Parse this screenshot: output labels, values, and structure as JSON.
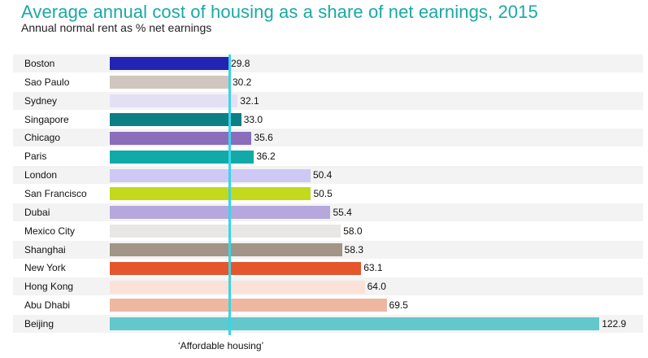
{
  "chart_data": {
    "type": "bar",
    "orientation": "horizontal",
    "title": "Average annual cost of housing as a share of net earnings, 2015",
    "subtitle": "Annual normal rent as % net earnings",
    "xlabel": "",
    "ylabel": "",
    "xlim": [
      0,
      125
    ],
    "grid": false,
    "categories": [
      "Boston",
      "Sao Paulo",
      "Sydney",
      "Singapore",
      "Chicago",
      "Paris",
      "London",
      "San Francisco",
      "Dubai",
      "Mexico City",
      "Shanghai",
      "New York",
      "Hong Kong",
      "Abu Dhabi",
      "Beijing"
    ],
    "values": [
      29.8,
      30.2,
      32.1,
      33.0,
      35.6,
      36.2,
      50.4,
      50.5,
      55.4,
      58.0,
      58.3,
      63.1,
      64.0,
      69.5,
      122.9
    ],
    "value_labels": [
      "29.8",
      "30.2",
      "32.1",
      "33.0",
      "35.6",
      "36.2",
      "50.4",
      "50.5",
      "55.4",
      "58.0",
      "58.3",
      "63.1",
      "64.0",
      "69.5",
      "122.9"
    ],
    "colors": [
      "#2323b4",
      "#d0c6bf",
      "#e4e0f4",
      "#0e7f84",
      "#8a6ebc",
      "#12a9a9",
      "#cdc9f4",
      "#c2d91c",
      "#b6a8dc",
      "#e9e7e6",
      "#a29486",
      "#e4562c",
      "#fbe2d9",
      "#efb7a2",
      "#62c8cc"
    ],
    "reference_line": {
      "value": 30,
      "label": "‘Affordable housing’",
      "color": "#3ad4e8"
    }
  }
}
